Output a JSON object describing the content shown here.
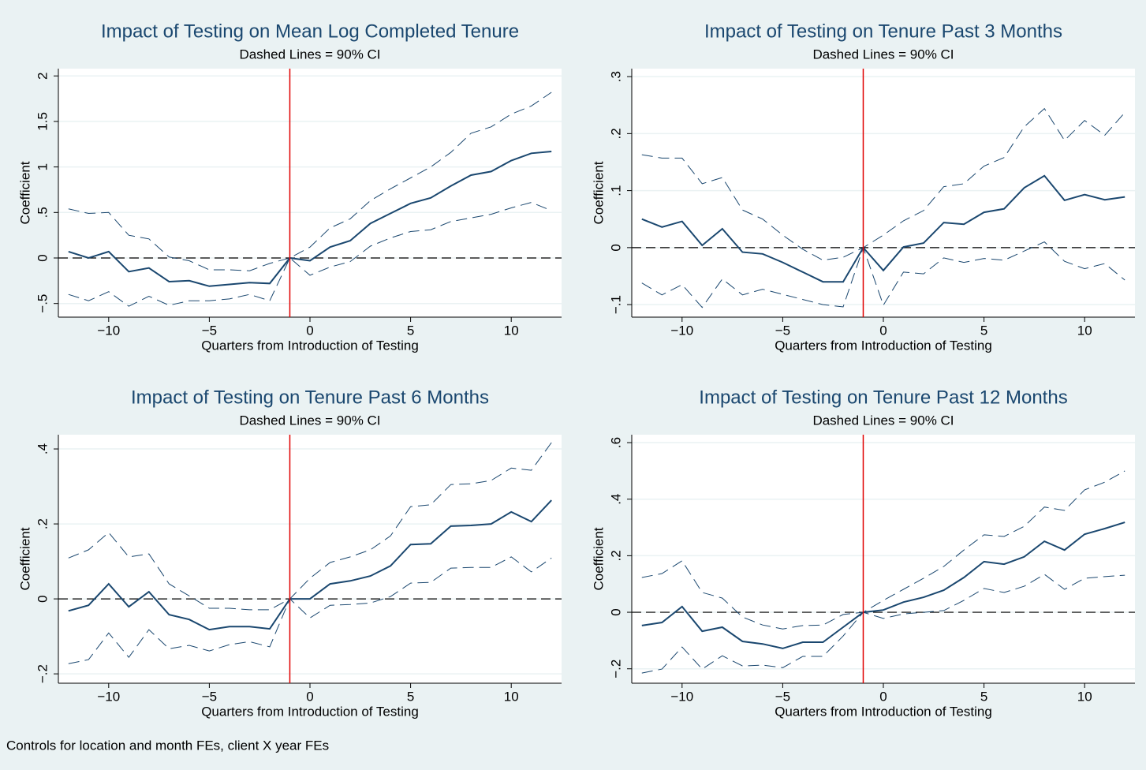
{
  "chart_data": [
    {
      "type": "line",
      "title": "Impact of Testing on Mean Log Completed Tenure",
      "subtitle": "Dashed Lines = 90% CI",
      "x_label": "Quarters from Introduction of Testing",
      "y_label": "Coefficient",
      "x": [
        -12,
        -11,
        -10,
        -9,
        -8,
        -7,
        -6,
        -5,
        -4,
        -3,
        -2,
        -1,
        0,
        1,
        2,
        3,
        4,
        5,
        6,
        7,
        8,
        9,
        10,
        11,
        12
      ],
      "series": [
        {
          "color": "#1a476f",
          "style": "solid",
          "values": [
            0.07,
            0,
            0.07,
            -0.15,
            -0.11,
            -0.26,
            -0.25,
            -0.31,
            -0.29,
            -0.27,
            -0.28,
            0,
            -0.03,
            0.12,
            0.19,
            0.38,
            0.49,
            0.6,
            0.66,
            0.79,
            0.91,
            0.95,
            1.07,
            1.15,
            1.17
          ]
        },
        {
          "color": "#1a476f",
          "style": "dashed",
          "values": [
            0.54,
            0.49,
            0.5,
            0.25,
            0.21,
            0.01,
            -0.03,
            -0.13,
            -0.13,
            -0.14,
            -0.06,
            0,
            0.12,
            0.33,
            0.43,
            0.63,
            0.76,
            0.88,
            1.0,
            1.16,
            1.37,
            1.44,
            1.58,
            1.67,
            1.82
          ]
        },
        {
          "color": "#1a476f",
          "style": "dashed",
          "values": [
            -0.4,
            -0.47,
            -0.37,
            -0.53,
            -0.42,
            -0.52,
            -0.47,
            -0.47,
            -0.45,
            -0.4,
            -0.47,
            0,
            -0.19,
            -0.1,
            -0.04,
            0.13,
            0.22,
            0.29,
            0.31,
            0.4,
            0.44,
            0.48,
            0.55,
            0.61,
            0.52
          ]
        }
      ],
      "xlim": [
        -12.5,
        12.5
      ],
      "xticks": [
        {
          "value": -10,
          "label": "−10"
        },
        {
          "value": -5,
          "label": "−5"
        },
        0,
        5,
        10
      ],
      "ylim": [
        -0.65,
        2.08
      ],
      "yticks": [
        {
          "value": -0.5,
          "label": "−.5"
        },
        0,
        {
          "value": 0.5,
          "label": ".5"
        },
        1,
        1.5,
        2
      ],
      "reference_x": -1,
      "reference_x_color": "#e00000",
      "reference_y": 0,
      "grid": true
    },
    {
      "type": "line",
      "title": "Impact of Testing on Tenure Past 3 Months",
      "subtitle": "Dashed Lines = 90% CI",
      "x_label": "Quarters from Introduction of Testing",
      "y_label": "Coefficient",
      "x": [
        -12,
        -11,
        -10,
        -9,
        -8,
        -7,
        -6,
        -5,
        -4,
        -3,
        -2,
        -1,
        0,
        1,
        2,
        3,
        4,
        5,
        6,
        7,
        8,
        9,
        10,
        11,
        12
      ],
      "series": [
        {
          "color": "#1a476f",
          "style": "solid",
          "values": [
            0.05,
            0.036,
            0.046,
            0.004,
            0.033,
            -0.008,
            -0.011,
            -0.026,
            -0.043,
            -0.06,
            -0.06,
            0,
            -0.04,
            0.001,
            0.008,
            0.044,
            0.041,
            0.062,
            0.068,
            0.105,
            0.126,
            0.083,
            0.093,
            0.084,
            0.089
          ]
        },
        {
          "color": "#1a476f",
          "style": "dashed",
          "values": [
            0.163,
            0.157,
            0.157,
            0.112,
            0.123,
            0.066,
            0.05,
            0.022,
            -0.003,
            -0.022,
            -0.017,
            0,
            0.022,
            0.047,
            0.065,
            0.107,
            0.112,
            0.143,
            0.158,
            0.212,
            0.244,
            0.188,
            0.223,
            0.197,
            0.237
          ]
        },
        {
          "color": "#1a476f",
          "style": "dashed",
          "values": [
            -0.062,
            -0.083,
            -0.065,
            -0.105,
            -0.055,
            -0.083,
            -0.073,
            -0.082,
            -0.091,
            -0.1,
            -0.104,
            0,
            -0.101,
            -0.043,
            -0.046,
            -0.018,
            -0.026,
            -0.019,
            -0.022,
            -0.006,
            0.01,
            -0.024,
            -0.037,
            -0.028,
            -0.057
          ]
        }
      ],
      "xlim": [
        -12.5,
        12.5
      ],
      "xticks": [
        {
          "value": -10,
          "label": "−10"
        },
        {
          "value": -5,
          "label": "−5"
        },
        0,
        5,
        10
      ],
      "ylim": [
        -0.122,
        0.314
      ],
      "yticks": [
        {
          "value": -0.1,
          "label": "−.1"
        },
        0,
        {
          "value": 0.1,
          "label": ".1"
        },
        {
          "value": 0.2,
          "label": ".2"
        },
        {
          "value": 0.3,
          "label": ".3"
        }
      ],
      "reference_x": -1,
      "reference_x_color": "#e00000",
      "reference_y": 0,
      "grid": true
    },
    {
      "type": "line",
      "title": "Impact of Testing on Tenure Past 6 Months",
      "subtitle": "Dashed Lines = 90% CI",
      "x_label": "Quarters from Introduction of Testing",
      "y_label": "Coefficient",
      "x": [
        -12,
        -11,
        -10,
        -9,
        -8,
        -7,
        -6,
        -5,
        -4,
        -3,
        -2,
        -1,
        0,
        1,
        2,
        3,
        4,
        5,
        6,
        7,
        8,
        9,
        10,
        11,
        12
      ],
      "series": [
        {
          "color": "#1a476f",
          "style": "solid",
          "values": [
            -0.032,
            -0.017,
            0.04,
            -0.021,
            0.019,
            -0.042,
            -0.055,
            -0.082,
            -0.074,
            -0.074,
            -0.08,
            0,
            0,
            0.04,
            0.048,
            0.061,
            0.088,
            0.145,
            0.147,
            0.194,
            0.196,
            0.2,
            0.232,
            0.206,
            0.263
          ]
        },
        {
          "color": "#1a476f",
          "style": "dashed",
          "values": [
            0.109,
            0.131,
            0.177,
            0.112,
            0.12,
            0.04,
            0.008,
            -0.025,
            -0.025,
            -0.029,
            -0.029,
            0,
            0.055,
            0.097,
            0.112,
            0.131,
            0.168,
            0.246,
            0.251,
            0.305,
            0.307,
            0.316,
            0.349,
            0.343,
            0.417
          ]
        },
        {
          "color": "#1a476f",
          "style": "dashed",
          "values": [
            -0.173,
            -0.162,
            -0.091,
            -0.156,
            -0.082,
            -0.133,
            -0.124,
            -0.139,
            -0.122,
            -0.114,
            -0.128,
            0,
            -0.051,
            -0.017,
            -0.015,
            -0.011,
            0.006,
            0.042,
            0.044,
            0.082,
            0.084,
            0.084,
            0.112,
            0.072,
            0.109
          ]
        }
      ],
      "xlim": [
        -12.5,
        12.5
      ],
      "xticks": [
        {
          "value": -10,
          "label": "−10"
        },
        {
          "value": -5,
          "label": "−5"
        },
        0,
        5,
        10
      ],
      "ylim": [
        -0.225,
        0.438
      ],
      "yticks": [
        {
          "value": -0.2,
          "label": "−.2"
        },
        0,
        {
          "value": 0.2,
          "label": ".2"
        },
        {
          "value": 0.4,
          "label": ".4"
        }
      ],
      "reference_x": -1,
      "reference_x_color": "#e00000",
      "reference_y": 0,
      "grid": true
    },
    {
      "type": "line",
      "title": "Impact of Testing on Tenure Past 12 Months",
      "subtitle": "Dashed Lines = 90% CI",
      "x_label": "Quarters from Introduction of Testing",
      "y_label": "Coefficient",
      "x": [
        -12,
        -11,
        -10,
        -9,
        -8,
        -7,
        -6,
        -5,
        -4,
        -3,
        -2,
        -1,
        0,
        1,
        2,
        3,
        4,
        5,
        6,
        7,
        8,
        9,
        10,
        11,
        12
      ],
      "series": [
        {
          "color": "#1a476f",
          "style": "solid",
          "values": [
            -0.047,
            -0.036,
            0.02,
            -0.067,
            -0.053,
            -0.103,
            -0.112,
            -0.128,
            -0.106,
            -0.106,
            -0.053,
            0,
            0.008,
            0.036,
            0.053,
            0.078,
            0.123,
            0.179,
            0.17,
            0.196,
            0.251,
            0.22,
            0.276,
            0.296,
            0.318
          ]
        },
        {
          "color": "#1a476f",
          "style": "dashed",
          "values": [
            0.123,
            0.137,
            0.182,
            0.07,
            0.05,
            -0.017,
            -0.045,
            -0.059,
            -0.047,
            -0.045,
            -0.008,
            0,
            0.042,
            0.081,
            0.12,
            0.162,
            0.22,
            0.274,
            0.268,
            0.304,
            0.372,
            0.36,
            0.433,
            0.46,
            0.5
          ]
        },
        {
          "color": "#1a476f",
          "style": "dashed",
          "values": [
            -0.215,
            -0.201,
            -0.123,
            -0.201,
            -0.154,
            -0.19,
            -0.187,
            -0.196,
            -0.156,
            -0.156,
            -0.084,
            0,
            -0.022,
            -0.006,
            0,
            0.006,
            0.042,
            0.084,
            0.07,
            0.092,
            0.134,
            0.081,
            0.12,
            0.126,
            0.131
          ]
        }
      ],
      "xlim": [
        -12.5,
        12.5
      ],
      "xticks": [
        {
          "value": -10,
          "label": "−10"
        },
        {
          "value": -5,
          "label": "−5"
        },
        0,
        5,
        10
      ],
      "ylim": [
        -0.251,
        0.628
      ],
      "yticks": [
        {
          "value": -0.2,
          "label": "−.2"
        },
        0,
        {
          "value": 0.2,
          "label": ".2"
        },
        {
          "value": 0.4,
          "label": ".4"
        },
        {
          "value": 0.6,
          "label": ".6"
        }
      ],
      "reference_x": -1,
      "reference_x_color": "#e00000",
      "reference_y": 0,
      "grid": true
    }
  ],
  "note": "Controls for location and month FEs, client X year FEs"
}
